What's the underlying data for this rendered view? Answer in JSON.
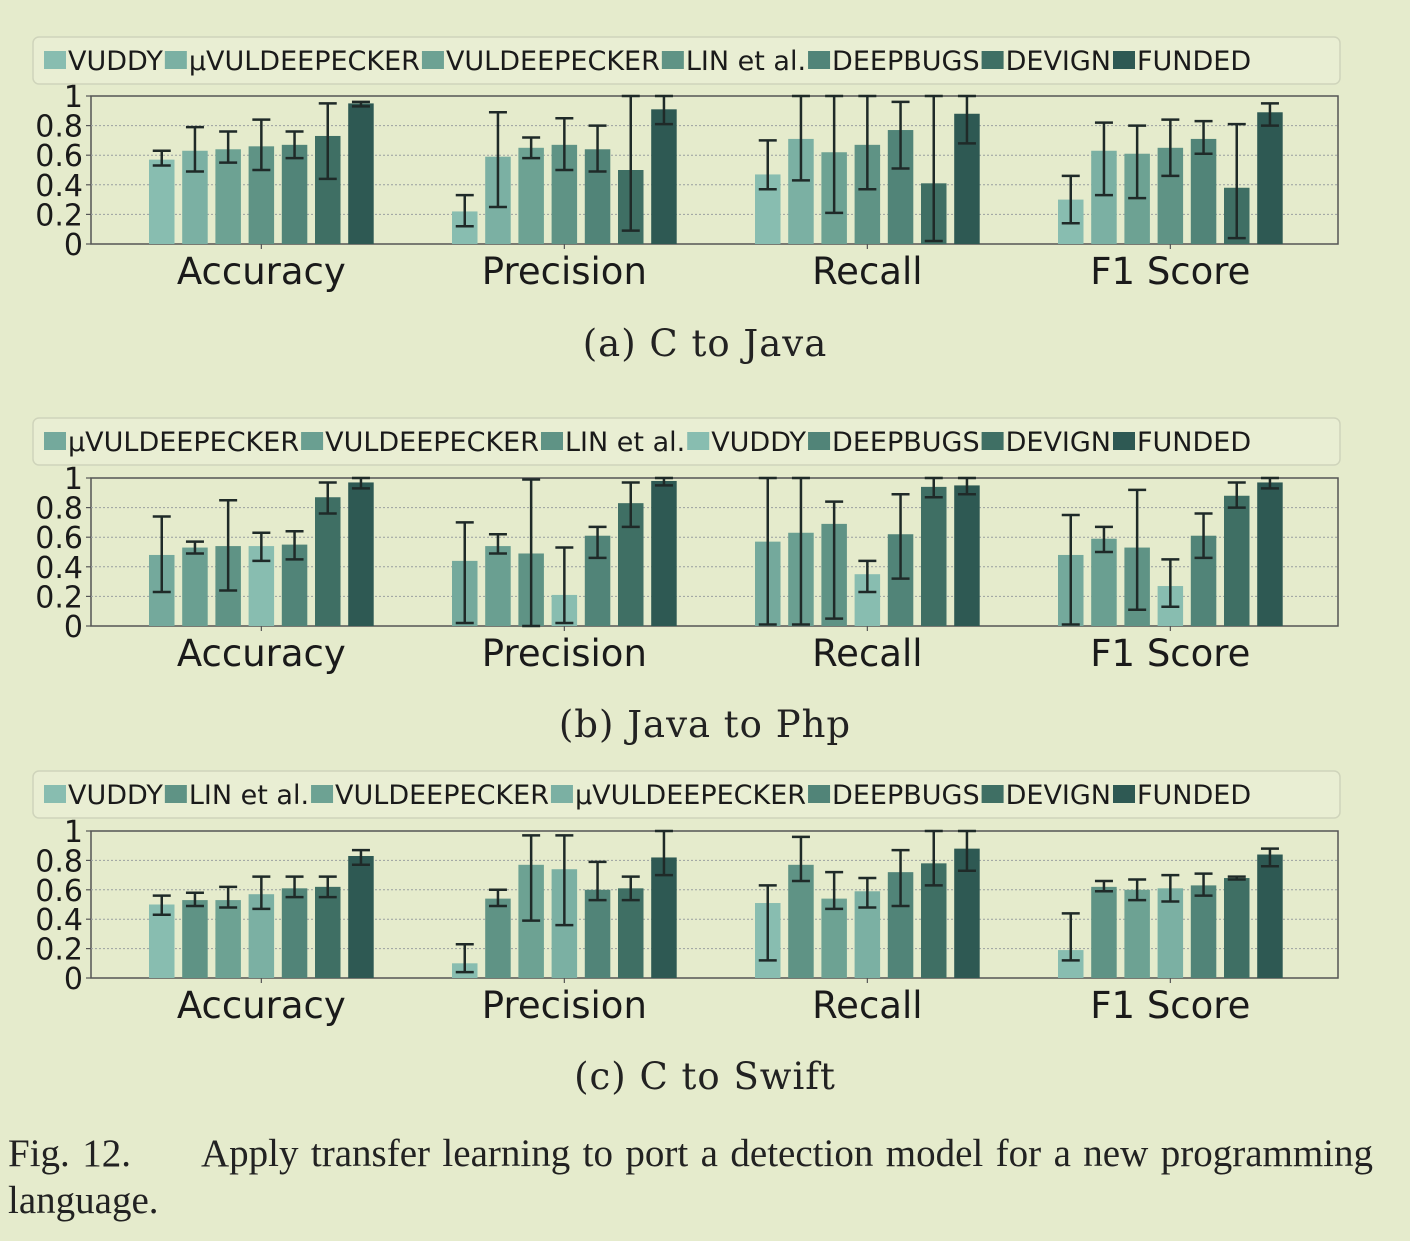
{
  "figure": {
    "label": "Fig. 12.",
    "caption": "Apply transfer learning to port a detection model for a new programming language."
  },
  "chart_data": [
    {
      "type": "bar",
      "caption": "(a) C to Java",
      "categories": [
        "Accuracy",
        "Precision",
        "Recall",
        "F1 Score"
      ],
      "ylim": [
        0,
        1
      ],
      "yticks": [
        "0",
        "0.2",
        "0.4",
        "0.6",
        "0.8",
        "1"
      ],
      "grid": true,
      "legend_position": "top",
      "series": [
        {
          "name": "VUDDY",
          "color": "#88bdb0",
          "values": [
            0.57,
            0.22,
            0.47,
            0.3
          ],
          "err_low": [
            0.53,
            0.12,
            0.37,
            0.14
          ],
          "err_high": [
            0.63,
            0.33,
            0.7,
            0.46
          ]
        },
        {
          "name": "μVULDEEPECKER",
          "color": "#7bb0a3",
          "values": [
            0.63,
            0.59,
            0.71,
            0.63
          ],
          "err_low": [
            0.49,
            0.25,
            0.43,
            0.33
          ],
          "err_high": [
            0.79,
            0.89,
            1.0,
            0.82
          ]
        },
        {
          "name": "VULDEEPECKER",
          "color": "#6da293",
          "values": [
            0.64,
            0.65,
            0.62,
            0.61
          ],
          "err_low": [
            0.55,
            0.58,
            0.21,
            0.31
          ],
          "err_high": [
            0.76,
            0.72,
            1.0,
            0.8
          ]
        },
        {
          "name": "LIN et al.",
          "color": "#5f9385",
          "values": [
            0.66,
            0.67,
            0.67,
            0.65
          ],
          "err_low": [
            0.5,
            0.5,
            0.37,
            0.46
          ],
          "err_high": [
            0.84,
            0.85,
            1.0,
            0.84
          ]
        },
        {
          "name": "DEEPBUGS",
          "color": "#518478",
          "values": [
            0.67,
            0.64,
            0.77,
            0.71
          ],
          "err_low": [
            0.58,
            0.49,
            0.51,
            0.61
          ],
          "err_high": [
            0.76,
            0.8,
            0.96,
            0.83
          ]
        },
        {
          "name": "DEVIGN",
          "color": "#3f6f64",
          "values": [
            0.73,
            0.5,
            0.41,
            0.38
          ],
          "err_low": [
            0.44,
            0.09,
            0.02,
            0.04
          ],
          "err_high": [
            0.95,
            1.0,
            1.0,
            0.81
          ]
        },
        {
          "name": "FUNDED",
          "color": "#2e5953",
          "values": [
            0.95,
            0.91,
            0.88,
            0.89
          ],
          "err_low": [
            0.93,
            0.81,
            0.68,
            0.8
          ],
          "err_high": [
            0.96,
            1.0,
            1.0,
            0.95
          ]
        }
      ]
    },
    {
      "type": "bar",
      "caption": "(b) Java to Php",
      "categories": [
        "Accuracy",
        "Precision",
        "Recall",
        "F1 Score"
      ],
      "ylim": [
        0,
        1
      ],
      "yticks": [
        "0",
        "0.2",
        "0.4",
        "0.6",
        "0.8",
        "1"
      ],
      "grid": true,
      "legend_position": "top",
      "series": [
        {
          "name": "μVULDEEPECKER",
          "color": "#74a99c",
          "values": [
            0.48,
            0.44,
            0.57,
            0.48
          ],
          "err_low": [
            0.23,
            0.02,
            0.01,
            0.01
          ],
          "err_high": [
            0.74,
            0.7,
            1.0,
            0.75
          ]
        },
        {
          "name": "VULDEEPECKER",
          "color": "#6a9f91",
          "values": [
            0.53,
            0.54,
            0.63,
            0.59
          ],
          "err_low": [
            0.49,
            0.49,
            0.01,
            0.5
          ],
          "err_high": [
            0.57,
            0.62,
            1.0,
            0.67
          ]
        },
        {
          "name": "LIN et al.",
          "color": "#5f9385",
          "values": [
            0.54,
            0.49,
            0.69,
            0.53
          ],
          "err_low": [
            0.24,
            0.0,
            0.05,
            0.11
          ],
          "err_high": [
            0.85,
            0.99,
            0.84,
            0.92
          ]
        },
        {
          "name": "VUDDY",
          "color": "#88bdb0",
          "values": [
            0.54,
            0.21,
            0.35,
            0.27
          ],
          "err_low": [
            0.44,
            0.02,
            0.23,
            0.13
          ],
          "err_high": [
            0.63,
            0.53,
            0.44,
            0.45
          ]
        },
        {
          "name": "DEEPBUGS",
          "color": "#518478",
          "values": [
            0.55,
            0.61,
            0.62,
            0.61
          ],
          "err_low": [
            0.45,
            0.46,
            0.32,
            0.46
          ],
          "err_high": [
            0.64,
            0.67,
            0.89,
            0.76
          ]
        },
        {
          "name": "DEVIGN",
          "color": "#3f6f64",
          "values": [
            0.87,
            0.83,
            0.94,
            0.88
          ],
          "err_low": [
            0.76,
            0.67,
            0.87,
            0.8
          ],
          "err_high": [
            0.97,
            0.97,
            1.0,
            0.97
          ]
        },
        {
          "name": "FUNDED",
          "color": "#2e5953",
          "values": [
            0.97,
            0.98,
            0.95,
            0.97
          ],
          "err_low": [
            0.93,
            0.95,
            0.89,
            0.93
          ],
          "err_high": [
            1.0,
            1.0,
            1.0,
            1.0
          ]
        }
      ]
    },
    {
      "type": "bar",
      "caption": "(c) C to Swift",
      "categories": [
        "Accuracy",
        "Precision",
        "Recall",
        "F1 Score"
      ],
      "ylim": [
        0,
        1
      ],
      "yticks": [
        "0",
        "0.2",
        "0.4",
        "0.6",
        "0.8",
        "1"
      ],
      "grid": true,
      "legend_position": "top",
      "series": [
        {
          "name": "VUDDY",
          "color": "#88bdb0",
          "values": [
            0.5,
            0.1,
            0.51,
            0.19
          ],
          "err_low": [
            0.43,
            0.04,
            0.12,
            0.12
          ],
          "err_high": [
            0.56,
            0.23,
            0.63,
            0.44
          ]
        },
        {
          "name": "LIN et al.",
          "color": "#5f9385",
          "values": [
            0.53,
            0.54,
            0.77,
            0.62
          ],
          "err_low": [
            0.49,
            0.49,
            0.66,
            0.59
          ],
          "err_high": [
            0.58,
            0.6,
            0.96,
            0.66
          ]
        },
        {
          "name": "VULDEEPECKER",
          "color": "#6da293",
          "values": [
            0.53,
            0.77,
            0.54,
            0.6
          ],
          "err_low": [
            0.48,
            0.39,
            0.47,
            0.53
          ],
          "err_high": [
            0.62,
            0.97,
            0.72,
            0.67
          ]
        },
        {
          "name": "μVULDEEPECKER",
          "color": "#7bb0a3",
          "values": [
            0.57,
            0.74,
            0.59,
            0.61
          ],
          "err_low": [
            0.47,
            0.36,
            0.48,
            0.52
          ],
          "err_high": [
            0.69,
            0.97,
            0.68,
            0.7
          ]
        },
        {
          "name": "DEEPBUGS",
          "color": "#518478",
          "values": [
            0.61,
            0.6,
            0.72,
            0.63
          ],
          "err_low": [
            0.55,
            0.53,
            0.49,
            0.56
          ],
          "err_high": [
            0.69,
            0.79,
            0.87,
            0.71
          ]
        },
        {
          "name": "DEVIGN",
          "color": "#3f6f64",
          "values": [
            0.62,
            0.61,
            0.78,
            0.68
          ],
          "err_low": [
            0.55,
            0.53,
            0.63,
            0.67
          ],
          "err_high": [
            0.69,
            0.69,
            1.0,
            0.69
          ]
        },
        {
          "name": "FUNDED",
          "color": "#2e5953",
          "values": [
            0.83,
            0.82,
            0.88,
            0.84
          ],
          "err_low": [
            0.77,
            0.7,
            0.73,
            0.76
          ],
          "err_high": [
            0.87,
            1.0,
            1.0,
            0.88
          ]
        }
      ]
    }
  ]
}
